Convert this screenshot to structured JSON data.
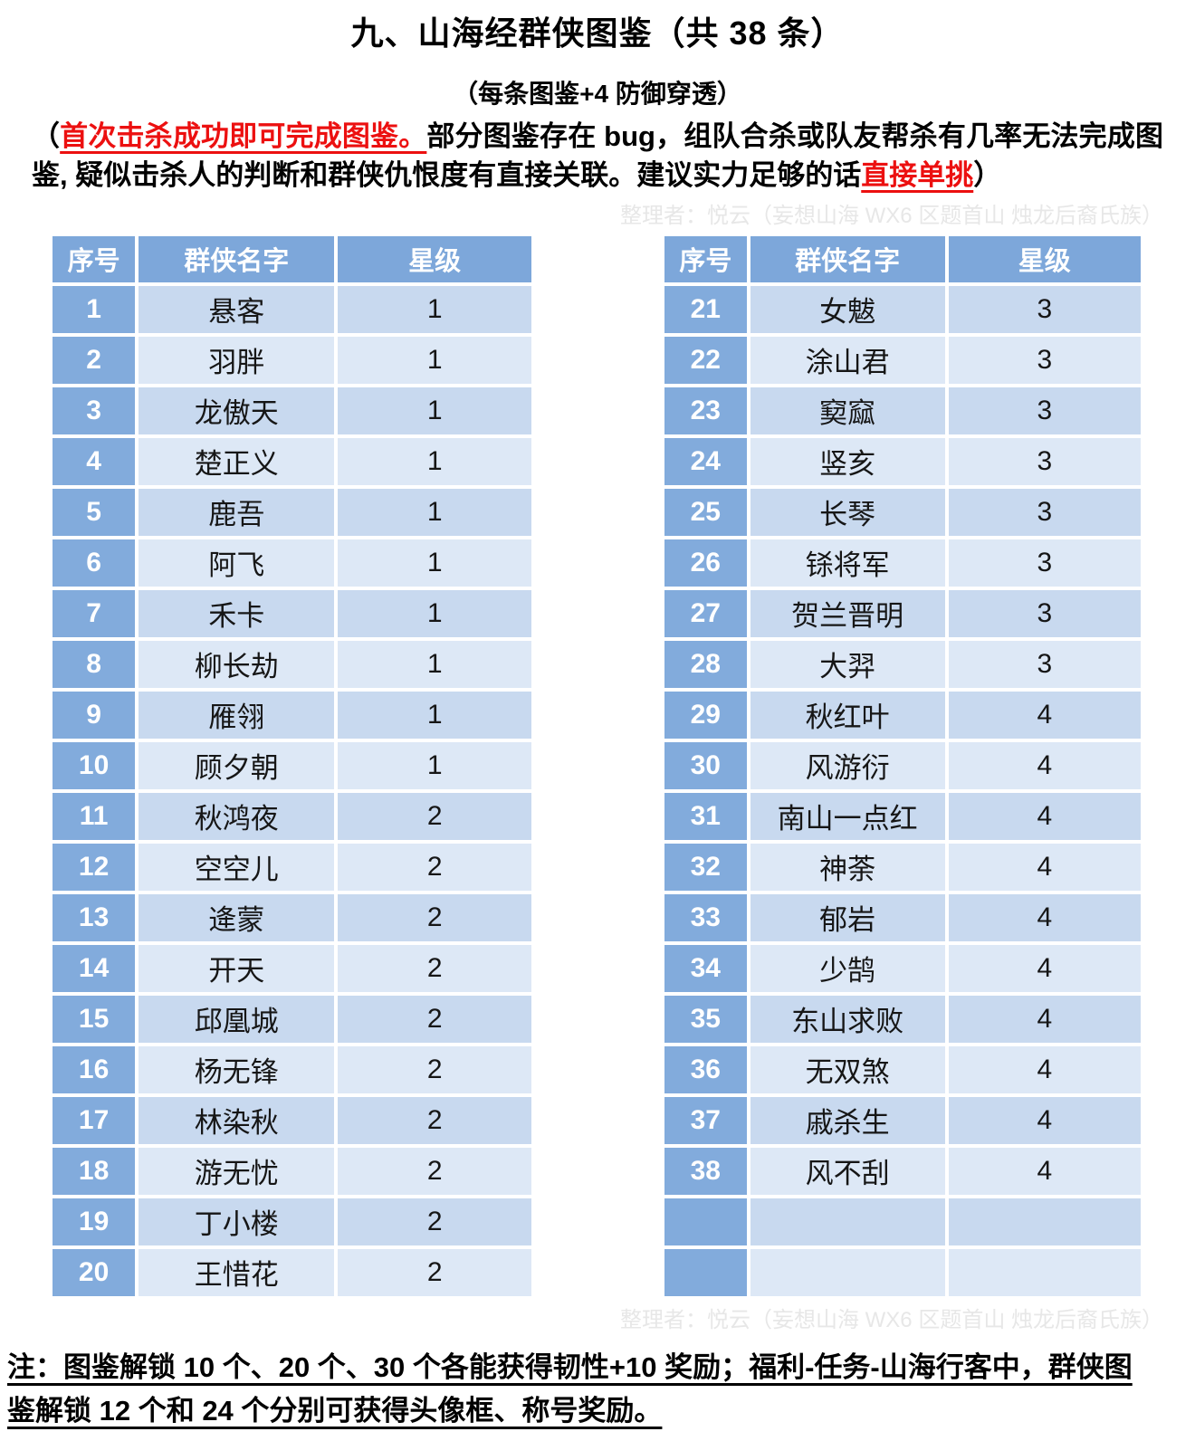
{
  "page": {
    "title": "九、山海经群侠图鉴（共 38 条）",
    "subtitle": "（每条图鉴+4 防御穿透）",
    "watermark": "整理者：悦云（妄想山海 WX6 区题首山 烛龙后裔氏族）"
  },
  "intro": {
    "open_paren": "（",
    "red_warning": "首次击杀成功即可完成图鉴。",
    "body_text": "部分图鉴存在 bug，组队合杀或队友帮杀有几率无法完成图鉴, 疑似击杀人的判断和群侠仇恨度有直接关联。建议实力足够的话",
    "red_advice": "直接单挑",
    "close_paren": "）"
  },
  "table": {
    "headers": [
      "序号",
      "群侠名字",
      "星级"
    ],
    "left_rows": [
      {
        "no": "1",
        "name": "悬客",
        "star": "1"
      },
      {
        "no": "2",
        "name": "羽胖",
        "star": "1"
      },
      {
        "no": "3",
        "name": "龙傲天",
        "star": "1"
      },
      {
        "no": "4",
        "name": "楚正义",
        "star": "1"
      },
      {
        "no": "5",
        "name": "鹿吾",
        "star": "1"
      },
      {
        "no": "6",
        "name": "阿飞",
        "star": "1"
      },
      {
        "no": "7",
        "name": "禾卡",
        "star": "1"
      },
      {
        "no": "8",
        "name": "柳长劫",
        "star": "1"
      },
      {
        "no": "9",
        "name": "雁翎",
        "star": "1"
      },
      {
        "no": "10",
        "name": "顾夕朝",
        "star": "1"
      },
      {
        "no": "11",
        "name": "秋鸿夜",
        "star": "2"
      },
      {
        "no": "12",
        "name": "空空儿",
        "star": "2"
      },
      {
        "no": "13",
        "name": "逄蒙",
        "star": "2"
      },
      {
        "no": "14",
        "name": "开天",
        "star": "2"
      },
      {
        "no": "15",
        "name": "邱凰城",
        "star": "2"
      },
      {
        "no": "16",
        "name": "杨无锋",
        "star": "2"
      },
      {
        "no": "17",
        "name": "林染秋",
        "star": "2"
      },
      {
        "no": "18",
        "name": "游无忧",
        "star": "2"
      },
      {
        "no": "19",
        "name": "丁小楼",
        "star": "2"
      },
      {
        "no": "20",
        "name": "王惜花",
        "star": "2"
      }
    ],
    "right_rows": [
      {
        "no": "21",
        "name": "女魃",
        "star": "3"
      },
      {
        "no": "22",
        "name": "涂山君",
        "star": "3"
      },
      {
        "no": "23",
        "name": "窫窳",
        "star": "3"
      },
      {
        "no": "24",
        "name": "竖亥",
        "star": "3"
      },
      {
        "no": "25",
        "name": "长琴",
        "star": "3"
      },
      {
        "no": "26",
        "name": "铩将军",
        "star": "3"
      },
      {
        "no": "27",
        "name": "贺兰晋明",
        "star": "3"
      },
      {
        "no": "28",
        "name": "大羿",
        "star": "3"
      },
      {
        "no": "29",
        "name": "秋红叶",
        "star": "4"
      },
      {
        "no": "30",
        "name": "风游衍",
        "star": "4"
      },
      {
        "no": "31",
        "name": "南山一点红",
        "star": "4"
      },
      {
        "no": "32",
        "name": "神荼",
        "star": "4"
      },
      {
        "no": "33",
        "name": "郁岩",
        "star": "4"
      },
      {
        "no": "34",
        "name": "少鹄",
        "star": "4"
      },
      {
        "no": "35",
        "name": "东山求败",
        "star": "4"
      },
      {
        "no": "36",
        "name": "无双煞",
        "star": "4"
      },
      {
        "no": "37",
        "name": "戚杀生",
        "star": "4"
      },
      {
        "no": "38",
        "name": "风不刮",
        "star": "4"
      },
      {
        "no": "",
        "name": "",
        "star": ""
      },
      {
        "no": "",
        "name": "",
        "star": ""
      }
    ]
  },
  "footnote": {
    "line1": "注：图鉴解锁 10 个、20 个、30 个各能获得韧性+10 奖励；福利-任务-山海行客中，群侠图",
    "line2": "鉴解锁 12 个和 24 个分别可获得头像框、称号奖励。"
  },
  "colors": {
    "header_blue": "#7da7da",
    "index_column_blue": "#82abdc",
    "row_band_dark": "#c8d9ef",
    "row_band_light": "#dde8f6",
    "warning_red": "#ec1010",
    "watermark_gray": "#e7e7e7"
  }
}
